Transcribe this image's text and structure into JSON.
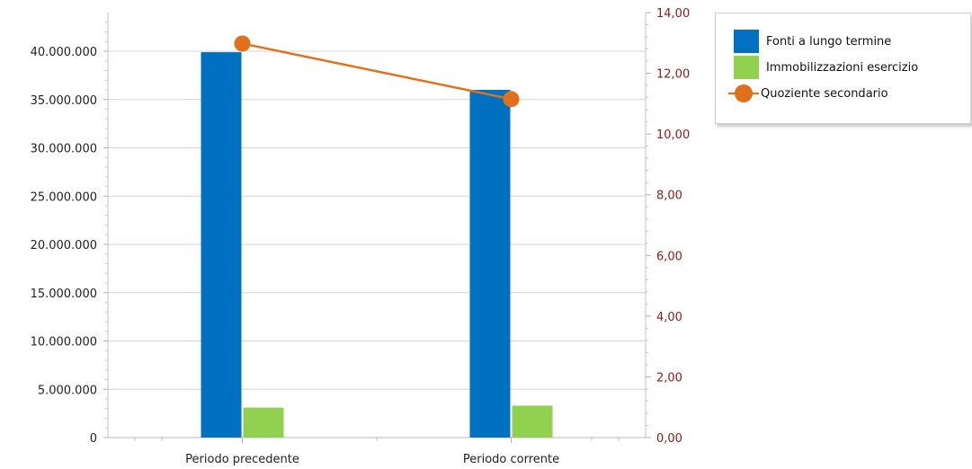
{
  "chart_data": {
    "type": "bar",
    "categories": [
      "Periodo precedente",
      "Periodo corrente"
    ],
    "series": [
      {
        "name": "Fonti a lungo termine",
        "type": "bar",
        "axis": "left",
        "color": "#0070c0",
        "values": [
          39900000,
          36000000
        ]
      },
      {
        "name": "Immobilizzazioni esercizio",
        "type": "bar",
        "axis": "left",
        "color": "#92d050",
        "values": [
          3100000,
          3300000
        ]
      },
      {
        "name": "Quoziente secondario",
        "type": "line",
        "axis": "right",
        "color": "#e0701a",
        "values": [
          12.98,
          11.15
        ]
      }
    ],
    "y_left": {
      "min": 0,
      "max": 44000000,
      "ticks": [
        0,
        5000000,
        10000000,
        15000000,
        20000000,
        25000000,
        30000000,
        35000000,
        40000000
      ],
      "tick_labels": [
        "0",
        "5.000.000",
        "10.000.000",
        "15.000.000",
        "20.000.000",
        "25.000.000",
        "30.000.000",
        "35.000.000",
        "40.000.000"
      ]
    },
    "y_right": {
      "min": 0,
      "max": 14,
      "ticks": [
        0,
        2,
        4,
        6,
        8,
        10,
        12,
        14
      ],
      "tick_labels": [
        "0,00",
        "2,00",
        "4,00",
        "6,00",
        "8,00",
        "10,00",
        "12,00",
        "14,00"
      ],
      "color": "#8b1a1a"
    },
    "grid": true,
    "legend_position": "top-right"
  },
  "legend": {
    "items": [
      {
        "label": "Fonti a lungo termine",
        "kind": "bar",
        "color": "#0070c0"
      },
      {
        "label": "Immobilizzazioni esercizio",
        "kind": "bar",
        "color": "#92d050"
      },
      {
        "label": "Quoziente secondario",
        "kind": "line",
        "color": "#e0701a"
      }
    ]
  }
}
